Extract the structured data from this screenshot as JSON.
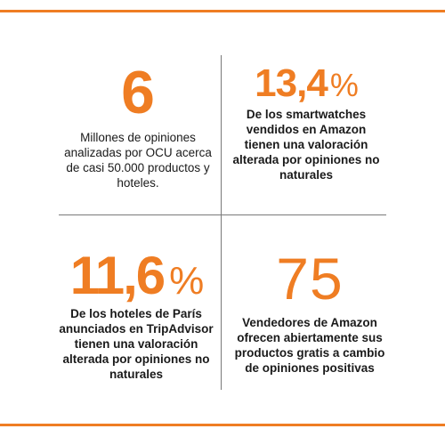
{
  "accent_color": "#ef7d23",
  "stats": [
    {
      "value": "6",
      "unit": "",
      "description": "Millones de opiniones analizadas por OCU acerca de casi 50.000 productos y hoteles."
    },
    {
      "value": "13,4",
      "unit": "%",
      "description": "De los smartwatches vendidos en Amazon tienen una valoración alterada por opiniones no naturales"
    },
    {
      "value": "11,6",
      "unit": "%",
      "description": "De los hoteles de París anunciados en TripAdvisor tienen una valoración alterada por opiniones no naturales"
    },
    {
      "value": "75",
      "unit": "",
      "description": "Vendedores de Amazon ofrecen abiertamente sus productos gratis a cambio de opiniones positivas"
    }
  ]
}
